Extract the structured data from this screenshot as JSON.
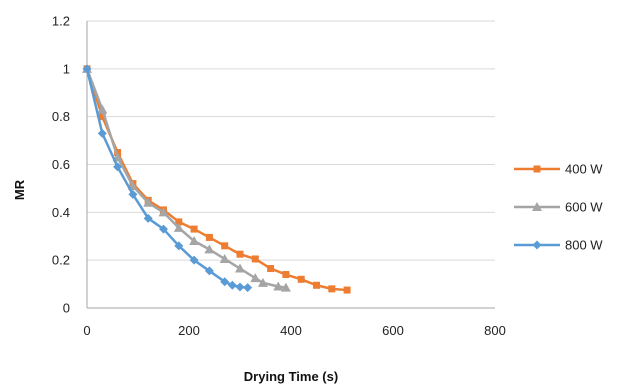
{
  "chart_data": {
    "type": "line",
    "title": "",
    "xlabel": "Drying Time (s)",
    "ylabel": "MR",
    "xlim": [
      0,
      800
    ],
    "ylim": [
      0,
      1.2
    ],
    "x_ticks": [
      "0",
      "200",
      "400",
      "600",
      "800"
    ],
    "y_ticks": [
      "0",
      "0.2",
      "0.4",
      "0.6",
      "0.8",
      "1",
      "1.2"
    ],
    "grid": "horizontal",
    "legend_position": "right",
    "series": [
      {
        "name": "400 W",
        "color": "#ED7D31",
        "marker": "square",
        "x": [
          0,
          30,
          60,
          90,
          120,
          150,
          180,
          210,
          240,
          270,
          300,
          330,
          360,
          390,
          420,
          450,
          480,
          510
        ],
        "y": [
          1.0,
          0.8,
          0.65,
          0.52,
          0.45,
          0.41,
          0.36,
          0.33,
          0.295,
          0.26,
          0.225,
          0.205,
          0.165,
          0.14,
          0.12,
          0.095,
          0.08,
          0.075
        ]
      },
      {
        "name": "600 W",
        "color": "#A5A5A5",
        "marker": "triangle",
        "x": [
          0,
          30,
          60,
          90,
          120,
          150,
          180,
          210,
          240,
          270,
          300,
          330,
          345,
          375,
          390
        ],
        "y": [
          1.0,
          0.83,
          0.63,
          0.51,
          0.44,
          0.4,
          0.335,
          0.28,
          0.245,
          0.205,
          0.165,
          0.125,
          0.105,
          0.09,
          0.085
        ]
      },
      {
        "name": "800 W",
        "color": "#5B9BD5",
        "marker": "diamond",
        "x": [
          0,
          30,
          60,
          90,
          120,
          150,
          180,
          210,
          240,
          270,
          285,
          300,
          315
        ],
        "y": [
          1.0,
          0.73,
          0.59,
          0.475,
          0.375,
          0.33,
          0.26,
          0.2,
          0.155,
          0.11,
          0.095,
          0.088,
          0.085
        ]
      }
    ]
  }
}
